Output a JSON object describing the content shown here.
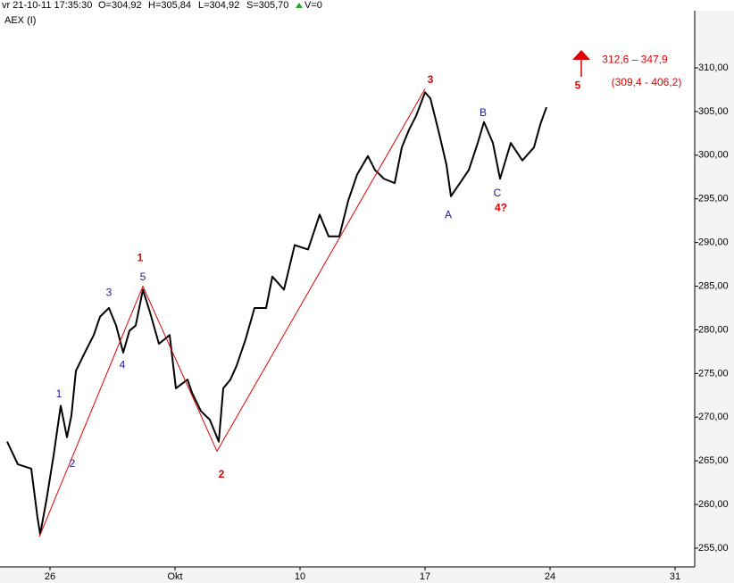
{
  "chart_data": {
    "type": "line",
    "title": "AEX (I)",
    "header": [
      "vr 21-10-11 17:35:30",
      "O=304,92",
      "H=305,84",
      "L=304,92",
      "S=305,70",
      "V=0"
    ],
    "series": [
      {
        "color": "#000000",
        "x": [
          -2.4,
          -1.8,
          -1.05,
          -0.7,
          -0.55,
          -0.2,
          0.2,
          0.6,
          0.95,
          1.2,
          1.45,
          1.95,
          2.45,
          2.8,
          3.3,
          3.7,
          4.1,
          4.45,
          4.8,
          5.2,
          5.6,
          6.1,
          6.7,
          7.05,
          7.7,
          7.95,
          8.45,
          8.95,
          9.45,
          9.7,
          10.1,
          10.45,
          10.95,
          11.45,
          12.1,
          12.45,
          13.1,
          13.7,
          14.45,
          15.1,
          15.6,
          16.2,
          16.7,
          17.2,
          17.8,
          18.2,
          18.7,
          19.3,
          19.7,
          20.1,
          20.5,
          21.0,
          21.3,
          21.8,
          22.2,
          22.45,
          22.95,
          23.45,
          23.95,
          24.3,
          24.8,
          25.2,
          25.8,
          26.45,
          27.1,
          27.45,
          27.8
        ],
        "values": [
          267.2,
          264.6,
          264.1,
          258.5,
          256.6,
          260.5,
          265.6,
          271.3,
          267.7,
          270.2,
          275.3,
          277.4,
          279.4,
          281.5,
          282.5,
          280.5,
          277.4,
          279.9,
          280.5,
          284.6,
          282.0,
          278.4,
          279.4,
          273.3,
          274.3,
          272.8,
          270.7,
          269.7,
          267.2,
          273.3,
          274.3,
          275.9,
          278.9,
          282.5,
          282.5,
          286.1,
          284.6,
          289.7,
          289.2,
          293.2,
          290.7,
          290.7,
          294.8,
          297.8,
          299.9,
          298.3,
          297.3,
          296.8,
          300.9,
          302.9,
          304.5,
          307.2,
          306.5,
          302.4,
          298.9,
          295.3,
          296.8,
          298.3,
          301.4,
          303.8,
          301.4,
          297.3,
          301.4,
          299.4,
          300.9,
          303.5,
          305.5
        ]
      },
      {
        "color": "#e00000",
        "x": [
          -0.6,
          5.2,
          9.35,
          21.0
        ],
        "values": [
          256.3,
          285.0,
          266.1,
          307.6
        ]
      }
    ],
    "annotations": [
      {
        "text": "1",
        "x": 5.05,
        "y": 288.2,
        "color": "#e00000"
      },
      {
        "text": "2",
        "x": 9.6,
        "y": 263.4,
        "color": "#e00000"
      },
      {
        "text": "3",
        "x": 21.3,
        "y": 308.6,
        "color": "#e00000"
      },
      {
        "text": "4?",
        "x": 25.25,
        "y": 293.9,
        "color": "#e00000"
      },
      {
        "text": "5",
        "x": 29.55,
        "y": 307.9,
        "color": "#e00000"
      },
      {
        "text": "1",
        "x": 0.5,
        "y": 272.6,
        "color": "#1a1aa0"
      },
      {
        "text": "2",
        "x": 1.25,
        "y": 264.6,
        "color": "#1a1aa0"
      },
      {
        "text": "3",
        "x": 3.3,
        "y": 284.2,
        "color": "#1a1aa0"
      },
      {
        "text": "4",
        "x": 4.05,
        "y": 275.9,
        "color": "#1a1aa0"
      },
      {
        "text": "5",
        "x": 5.2,
        "y": 286.0,
        "color": "#1a1aa0"
      },
      {
        "text": "A",
        "x": 22.3,
        "y": 293.1,
        "color": "#1a1aa0"
      },
      {
        "text": "B",
        "x": 24.25,
        "y": 304.8,
        "color": "#1a1aa0"
      },
      {
        "text": "C",
        "x": 25.05,
        "y": 295.6,
        "color": "#1a1aa0"
      },
      {
        "text": "312,6 – 347,9",
        "x": 32.75,
        "y": 310.9,
        "color": "#e00000"
      },
      {
        "text": "(309,4 - 406,2)",
        "x": 33.4,
        "y": 308.3,
        "color": "#e00000"
      }
    ],
    "xlim": [
      -2.8,
      36.1
    ],
    "xticks": [
      {
        "value": 0,
        "label": "26"
      },
      {
        "value": 7,
        "label": "Okt"
      },
      {
        "value": 14,
        "label": "10"
      },
      {
        "value": 21,
        "label": "17"
      },
      {
        "value": 28,
        "label": "24"
      },
      {
        "value": 35,
        "label": "31"
      }
    ],
    "ylim": [
      252.85,
      316.75
    ],
    "yticks": [
      {
        "value": 255,
        "label": "255,00"
      },
      {
        "value": 260,
        "label": "260,00"
      },
      {
        "value": 265,
        "label": "265,00"
      },
      {
        "value": 270,
        "label": "270,00"
      },
      {
        "value": 275,
        "label": "275,00"
      },
      {
        "value": 280,
        "label": "280,00"
      },
      {
        "value": 285,
        "label": "285,00"
      },
      {
        "value": 290,
        "label": "290,00"
      },
      {
        "value": 295,
        "label": "295,00"
      },
      {
        "value": 300,
        "label": "300,00"
      },
      {
        "value": 305,
        "label": "305,00"
      },
      {
        "value": 310,
        "label": "310,00"
      }
    ],
    "grid": false
  }
}
